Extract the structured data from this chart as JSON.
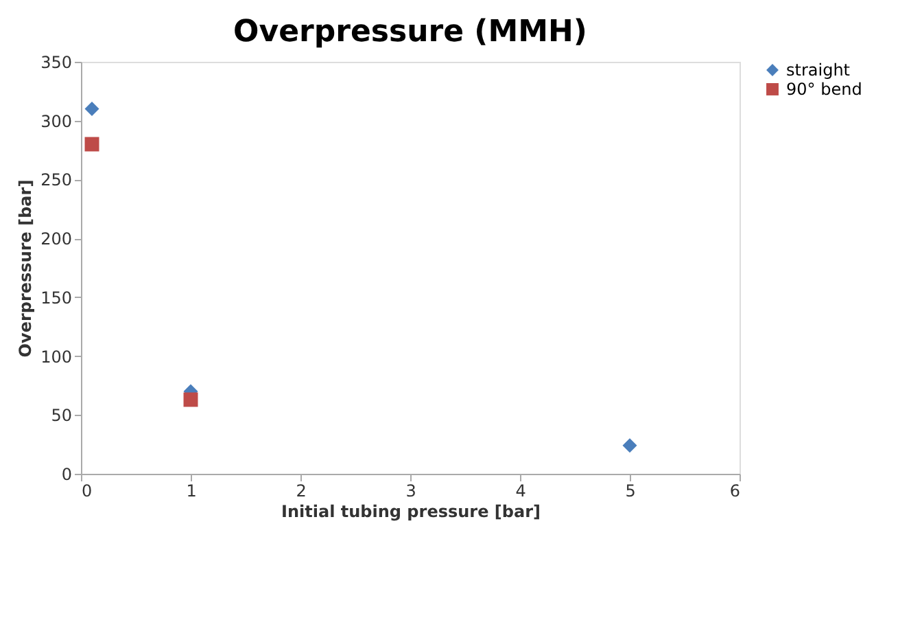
{
  "chart_data": {
    "type": "scatter",
    "title": "Overpressure (MMH)",
    "xlabel": "Initial tubing pressure [bar]",
    "ylabel": "Overpressure [bar]",
    "xlim": [
      0,
      6
    ],
    "xticks": [
      0,
      1,
      2,
      3,
      4,
      5,
      6
    ],
    "ylim": [
      0,
      350
    ],
    "yticks": [
      0,
      50,
      100,
      150,
      200,
      250,
      300,
      350
    ],
    "grid": false,
    "legend": "right",
    "series": [
      {
        "name": "straight",
        "color": "#4a7ebb",
        "marker": "diamond",
        "x": [
          0.1,
          1,
          5
        ],
        "values": [
          310,
          70,
          24
        ]
      },
      {
        "name": "90° bend",
        "color": "#be4b48",
        "marker": "square",
        "x": [
          0.1,
          1
        ],
        "values": [
          280,
          63
        ]
      }
    ]
  }
}
